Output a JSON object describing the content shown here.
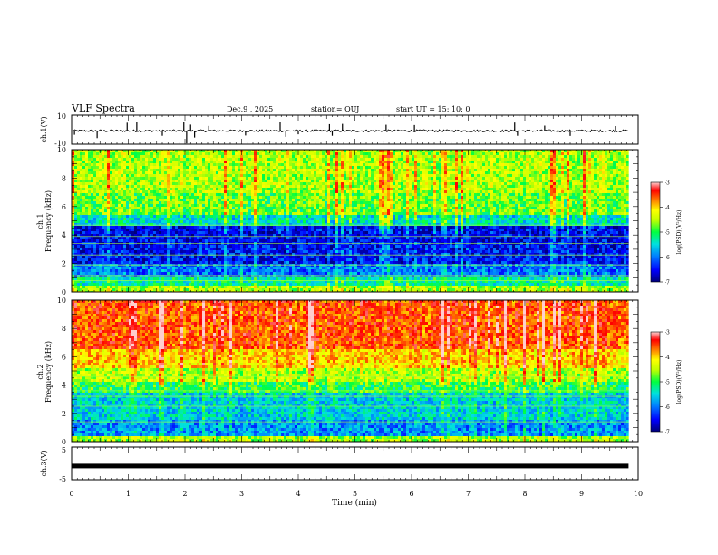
{
  "header": {
    "title": "VLF Spectra",
    "date": "Dec.9  , 2025",
    "station": "station= OUJ",
    "start": "start  UT  =   15: 10: 0"
  },
  "colors": {
    "scale": [
      "#00007a",
      "#0000ff",
      "#0080ff",
      "#00e0e0",
      "#00ff40",
      "#c0ff00",
      "#ffff00",
      "#ff8000",
      "#ff0000",
      "#ffd0d0"
    ]
  },
  "chart_data": [
    {
      "type": "line",
      "panel": "ch1-waveform",
      "ylabel": "ch.1(V)",
      "ylim": [
        -10,
        10
      ],
      "yticks": [
        "10",
        "-10"
      ],
      "xlim": [
        0,
        10
      ],
      "baseline": -0.8,
      "spikes": [
        {
          "x": 0.05,
          "y": -3.5
        },
        {
          "x": 0.45,
          "y": -5.8
        },
        {
          "x": 0.98,
          "y": 4.8
        },
        {
          "x": 1.15,
          "y": 5.2
        },
        {
          "x": 1.6,
          "y": -4.2
        },
        {
          "x": 1.98,
          "y": 5.0
        },
        {
          "x": 2.03,
          "y": -9.5
        },
        {
          "x": 2.1,
          "y": 3.5
        },
        {
          "x": 2.17,
          "y": -5.4
        },
        {
          "x": 2.42,
          "y": 2.6
        },
        {
          "x": 3.07,
          "y": -4.0
        },
        {
          "x": 3.68,
          "y": 5.3
        },
        {
          "x": 3.78,
          "y": -4.9
        },
        {
          "x": 4.0,
          "y": -3.2
        },
        {
          "x": 4.55,
          "y": 3.8
        },
        {
          "x": 4.6,
          "y": -4.2
        },
        {
          "x": 4.78,
          "y": 4.0
        },
        {
          "x": 5.55,
          "y": 3.4
        },
        {
          "x": 6.05,
          "y": 3.2
        },
        {
          "x": 7.82,
          "y": 4.9
        },
        {
          "x": 7.87,
          "y": -4.2
        },
        {
          "x": 8.35,
          "y": 2.8
        },
        {
          "x": 8.8,
          "y": -4.3
        },
        {
          "x": 9.6,
          "y": 2.5
        }
      ]
    },
    {
      "type": "heatmap",
      "panel": "ch1-spectrogram",
      "title": "ch.1",
      "ylabel": "Frequency  (kHz)",
      "ylim": [
        0,
        10
      ],
      "yticks": [
        "0",
        "2",
        "4",
        "6",
        "8",
        "10"
      ],
      "xlim": [
        0,
        9.83
      ],
      "colorbar": {
        "label": "log(PSD)(V²/Hz)",
        "range": [
          -7,
          -3
        ],
        "ticks": [
          "-3",
          "-4",
          "-5",
          "-6",
          "-7"
        ]
      },
      "bands": [
        {
          "f0": 0.0,
          "f1": 0.4,
          "level": 0.55
        },
        {
          "f0": 0.4,
          "f1": 1.0,
          "level": 0.38
        },
        {
          "f0": 1.0,
          "f1": 2.0,
          "level": 0.22
        },
        {
          "f0": 2.0,
          "f1": 3.4,
          "level": 0.12
        },
        {
          "f0": 3.4,
          "f1": 4.6,
          "level": 0.1
        },
        {
          "f0": 4.6,
          "f1": 5.5,
          "level": 0.35
        },
        {
          "f0": 5.5,
          "f1": 7.0,
          "level": 0.5
        },
        {
          "f0": 7.0,
          "f1": 10.0,
          "level": 0.56
        }
      ],
      "lines_khz": [
        0.8,
        1.15,
        1.9,
        2.6,
        3.4,
        3.9,
        4.7
      ]
    },
    {
      "type": "heatmap",
      "panel": "ch2-spectrogram",
      "title": "ch.2",
      "ylabel": "Frequency  (kHz)",
      "ylim": [
        0,
        10
      ],
      "yticks": [
        "0",
        "2",
        "4",
        "6",
        "8",
        "10"
      ],
      "xlim": [
        0,
        9.83
      ],
      "colorbar": {
        "label": "log(PSD)(V²/Hz)",
        "range": [
          -7,
          -3
        ],
        "ticks": [
          "-3",
          "-4",
          "-5",
          "-6",
          "-7"
        ]
      },
      "bands": [
        {
          "f0": 0.0,
          "f1": 0.4,
          "level": 0.55
        },
        {
          "f0": 0.4,
          "f1": 1.5,
          "level": 0.25
        },
        {
          "f0": 1.5,
          "f1": 3.4,
          "level": 0.32
        },
        {
          "f0": 3.4,
          "f1": 4.2,
          "level": 0.45
        },
        {
          "f0": 4.2,
          "f1": 5.2,
          "level": 0.56
        },
        {
          "f0": 5.2,
          "f1": 6.5,
          "level": 0.7
        },
        {
          "f0": 6.5,
          "f1": 10.0,
          "level": 0.82
        }
      ],
      "lines_khz": [
        0.6,
        1.4,
        2.5,
        3.2,
        3.6,
        4.6
      ]
    },
    {
      "type": "line",
      "panel": "ch3-waveform",
      "ylabel": "ch.3(V)",
      "ylim": [
        -5,
        5
      ],
      "yticks": [
        "5",
        "-5"
      ],
      "xlim": [
        0,
        9.83
      ],
      "value": -0.8,
      "xlabel": "Time  (min)",
      "xticks": [
        "0",
        "1",
        "2",
        "3",
        "4",
        "5",
        "6",
        "7",
        "8",
        "9",
        "10"
      ]
    }
  ]
}
